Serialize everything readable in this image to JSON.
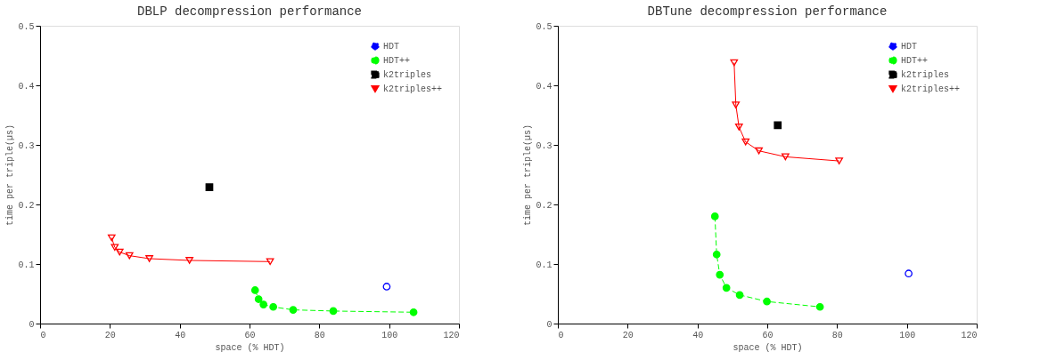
{
  "chart_data": [
    {
      "type": "line",
      "title": "DBLP decompression performance",
      "xlabel": "space (% HDT)",
      "ylabel": "time per triple(µs)",
      "xlim": [
        0,
        120
      ],
      "ylim": [
        0,
        0.5
      ],
      "xticks": [
        0,
        20,
        40,
        60,
        80,
        100,
        120
      ],
      "yticks": [
        0,
        0.1,
        0.2,
        0.3,
        0.4,
        0.5
      ],
      "grid": false,
      "legend": "top right",
      "series": [
        {
          "name": "HDT",
          "color": "#0000ff",
          "marker": "circle",
          "line_style": "dotted",
          "x": [
            99.3
          ],
          "values": [
            0.062
          ]
        },
        {
          "name": "HDT++",
          "color": "#00ff00",
          "marker": "circle",
          "line_style": "dashed",
          "x": [
            61.6,
            62.6,
            64.0,
            66.8,
            72.5,
            84.0,
            107.0
          ],
          "values": [
            0.056,
            0.041,
            0.032,
            0.028,
            0.023,
            0.021,
            0.019
          ]
        },
        {
          "name": "k2triples",
          "color": "#000000",
          "marker": "square",
          "line_style": "dashed",
          "x": [
            48.5
          ],
          "values": [
            0.229
          ]
        },
        {
          "name": "k2triples++",
          "color": "#ff0000",
          "marker": "triangle",
          "line_style": "solid",
          "x": [
            20.5,
            21.4,
            22.8,
            25.6,
            31.3,
            42.8,
            65.9
          ],
          "values": [
            0.144,
            0.128,
            0.12,
            0.114,
            0.109,
            0.106,
            0.104
          ]
        }
      ]
    },
    {
      "type": "line",
      "title": "DBTune decompression performance",
      "xlabel": "space (% HDT)",
      "ylabel": "time per triple(µs)",
      "xlim": [
        0,
        120
      ],
      "ylim": [
        0,
        0.5
      ],
      "xticks": [
        0,
        20,
        40,
        60,
        80,
        100,
        120
      ],
      "yticks": [
        0,
        0.1,
        0.2,
        0.3,
        0.4,
        0.5
      ],
      "grid": false,
      "legend": "top right",
      "series": [
        {
          "name": "HDT",
          "color": "#0000ff",
          "marker": "circle",
          "line_style": "dotted",
          "x": [
            100.5
          ],
          "values": [
            0.084
          ]
        },
        {
          "name": "HDT++",
          "color": "#00ff00",
          "marker": "circle",
          "line_style": "dashed",
          "x": [
            45.0,
            45.5,
            46.4,
            48.3,
            52.1,
            59.9,
            75.1
          ],
          "values": [
            0.18,
            0.116,
            0.082,
            0.06,
            0.048,
            0.037,
            0.028
          ]
        },
        {
          "name": "k2triples",
          "color": "#000000",
          "marker": "square",
          "line_style": "dashed",
          "x": [
            63.0
          ],
          "values": [
            0.333
          ]
        },
        {
          "name": "k2triples++",
          "color": "#ff0000",
          "marker": "triangle",
          "line_style": "solid",
          "x": [
            50.5,
            51.0,
            51.9,
            53.8,
            57.6,
            65.2,
            80.6
          ],
          "values": [
            0.438,
            0.367,
            0.33,
            0.305,
            0.29,
            0.28,
            0.273
          ]
        }
      ]
    }
  ]
}
